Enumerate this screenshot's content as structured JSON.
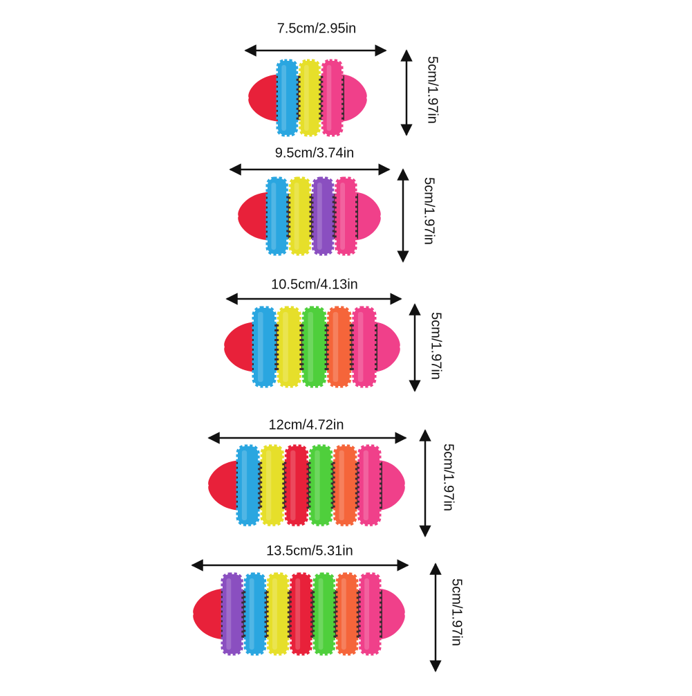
{
  "items": [
    {
      "width": "7.5cm/2.95in",
      "height": "5cm/1.97in"
    },
    {
      "width": "9.5cm/3.74in",
      "height": "5cm/1.97in"
    },
    {
      "width": "10.5cm/4.13in",
      "height": "5cm/1.97in"
    },
    {
      "width": "12cm/4.72in",
      "height": "5cm/1.97in"
    },
    {
      "width": "13.5cm/5.31in",
      "height": "5cm/1.97in"
    }
  ]
}
